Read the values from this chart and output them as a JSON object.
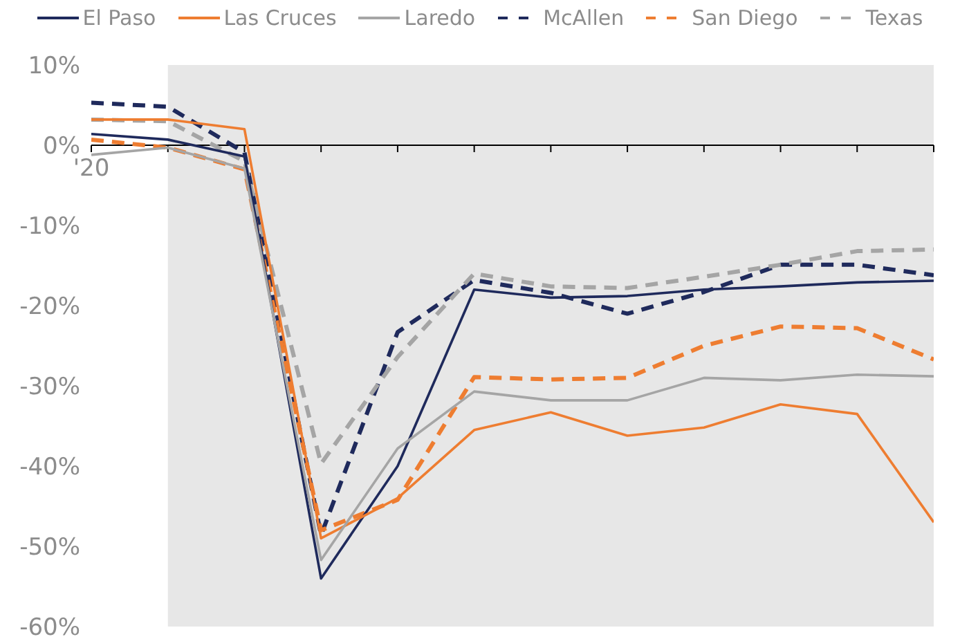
{
  "chart_data": {
    "type": "line",
    "legend": "top",
    "categories": [
      "'20",
      null,
      null,
      null,
      null,
      null,
      null,
      null,
      null,
      null,
      null,
      null
    ],
    "ylim": [
      -60,
      10
    ],
    "yticks": [
      {
        "value": -60,
        "label": "-60%"
      },
      {
        "value": -50,
        "label": "-50%"
      },
      {
        "value": -40,
        "label": "-40%"
      },
      {
        "value": -30,
        "label": "-30%"
      },
      {
        "value": -20,
        "label": "-20%"
      },
      {
        "value": -10,
        "label": "-10%"
      },
      {
        "value": 0,
        "label": "0%"
      },
      {
        "value": 10,
        "label": "10%"
      }
    ],
    "series": [
      {
        "name": "El Paso",
        "color": "#1f2a5c",
        "line_style": "solid",
        "values": [
          1.4,
          0.7,
          -1.4,
          -54,
          -40,
          -18,
          -19,
          -18.8,
          -18,
          -17.6,
          -17.1,
          -16.9
        ]
      },
      {
        "name": "Las Cruces",
        "color": "#ee7d31",
        "line_style": "solid",
        "values": [
          3.2,
          3.2,
          2,
          -49,
          -44,
          -35.5,
          -33.3,
          -36.2,
          -35.2,
          -32.3,
          -33.5,
          -47
        ]
      },
      {
        "name": "Laredo",
        "color": "#a5a5a5",
        "line_style": "solid",
        "values": [
          -1.2,
          -0.3,
          -2.9,
          -51.7,
          -37.8,
          -30.7,
          -31.8,
          -31.8,
          -29,
          -29.3,
          -28.6,
          -28.8
        ]
      },
      {
        "name": "McAllen",
        "color": "#1f2a5c",
        "line_style": "dashed",
        "values": [
          5.3,
          4.8,
          -0.9,
          -48.6,
          -23.3,
          -16.8,
          -18.4,
          -21,
          -18.3,
          -14.9,
          -14.9,
          -16.2
        ]
      },
      {
        "name": "San Diego",
        "color": "#ee7d31",
        "line_style": "dashed",
        "values": [
          0.7,
          -0.3,
          -3,
          -48,
          -44.2,
          -28.9,
          -29.2,
          -29,
          -25,
          -22.6,
          -22.8,
          -26.7
        ]
      },
      {
        "name": "Texas",
        "color": "#a5a5a5",
        "line_style": "dashed",
        "values": [
          3.2,
          3,
          -2,
          -39.7,
          -26.4,
          -16,
          -17.6,
          -17.8,
          -16.4,
          -14.9,
          -13.2,
          -13
        ]
      }
    ]
  }
}
